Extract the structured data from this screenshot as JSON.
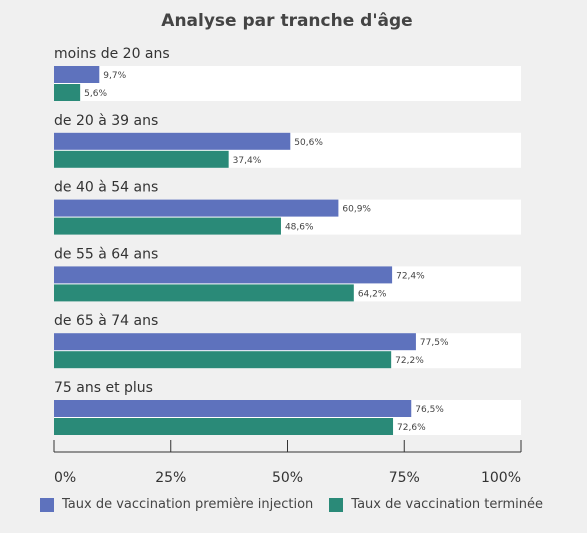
{
  "chart_data": {
    "type": "bar",
    "orientation": "horizontal",
    "title": "Analyse par tranche d'âge",
    "categories": [
      "moins de 20 ans",
      "de 20 à 39 ans",
      "de 40 à 54 ans",
      "de 55 à 64 ans",
      "de 65 à 74 ans",
      "75 ans et plus"
    ],
    "series": [
      {
        "name": "Taux de vaccination première injection",
        "color": "#5e72bd",
        "values": [
          9.7,
          50.6,
          60.9,
          72.4,
          77.5,
          76.5
        ],
        "labels": [
          "9,7%",
          "50,6%",
          "60,9%",
          "72,4%",
          "77,5%",
          "76,5%"
        ]
      },
      {
        "name": "Taux de vaccination terminée",
        "color": "#2a8a78",
        "values": [
          5.6,
          37.4,
          48.6,
          64.2,
          72.2,
          72.6
        ],
        "labels": [
          "5,6%",
          "37,4%",
          "48,6%",
          "64,2%",
          "72,2%",
          "72,6%"
        ]
      }
    ],
    "xlim": [
      0,
      100
    ],
    "xticks": [
      0,
      25,
      50,
      75,
      100
    ],
    "xtick_labels": [
      "0%",
      "25%",
      "50%",
      "75%",
      "100%"
    ],
    "legend_position": "bottom",
    "grid": false
  }
}
